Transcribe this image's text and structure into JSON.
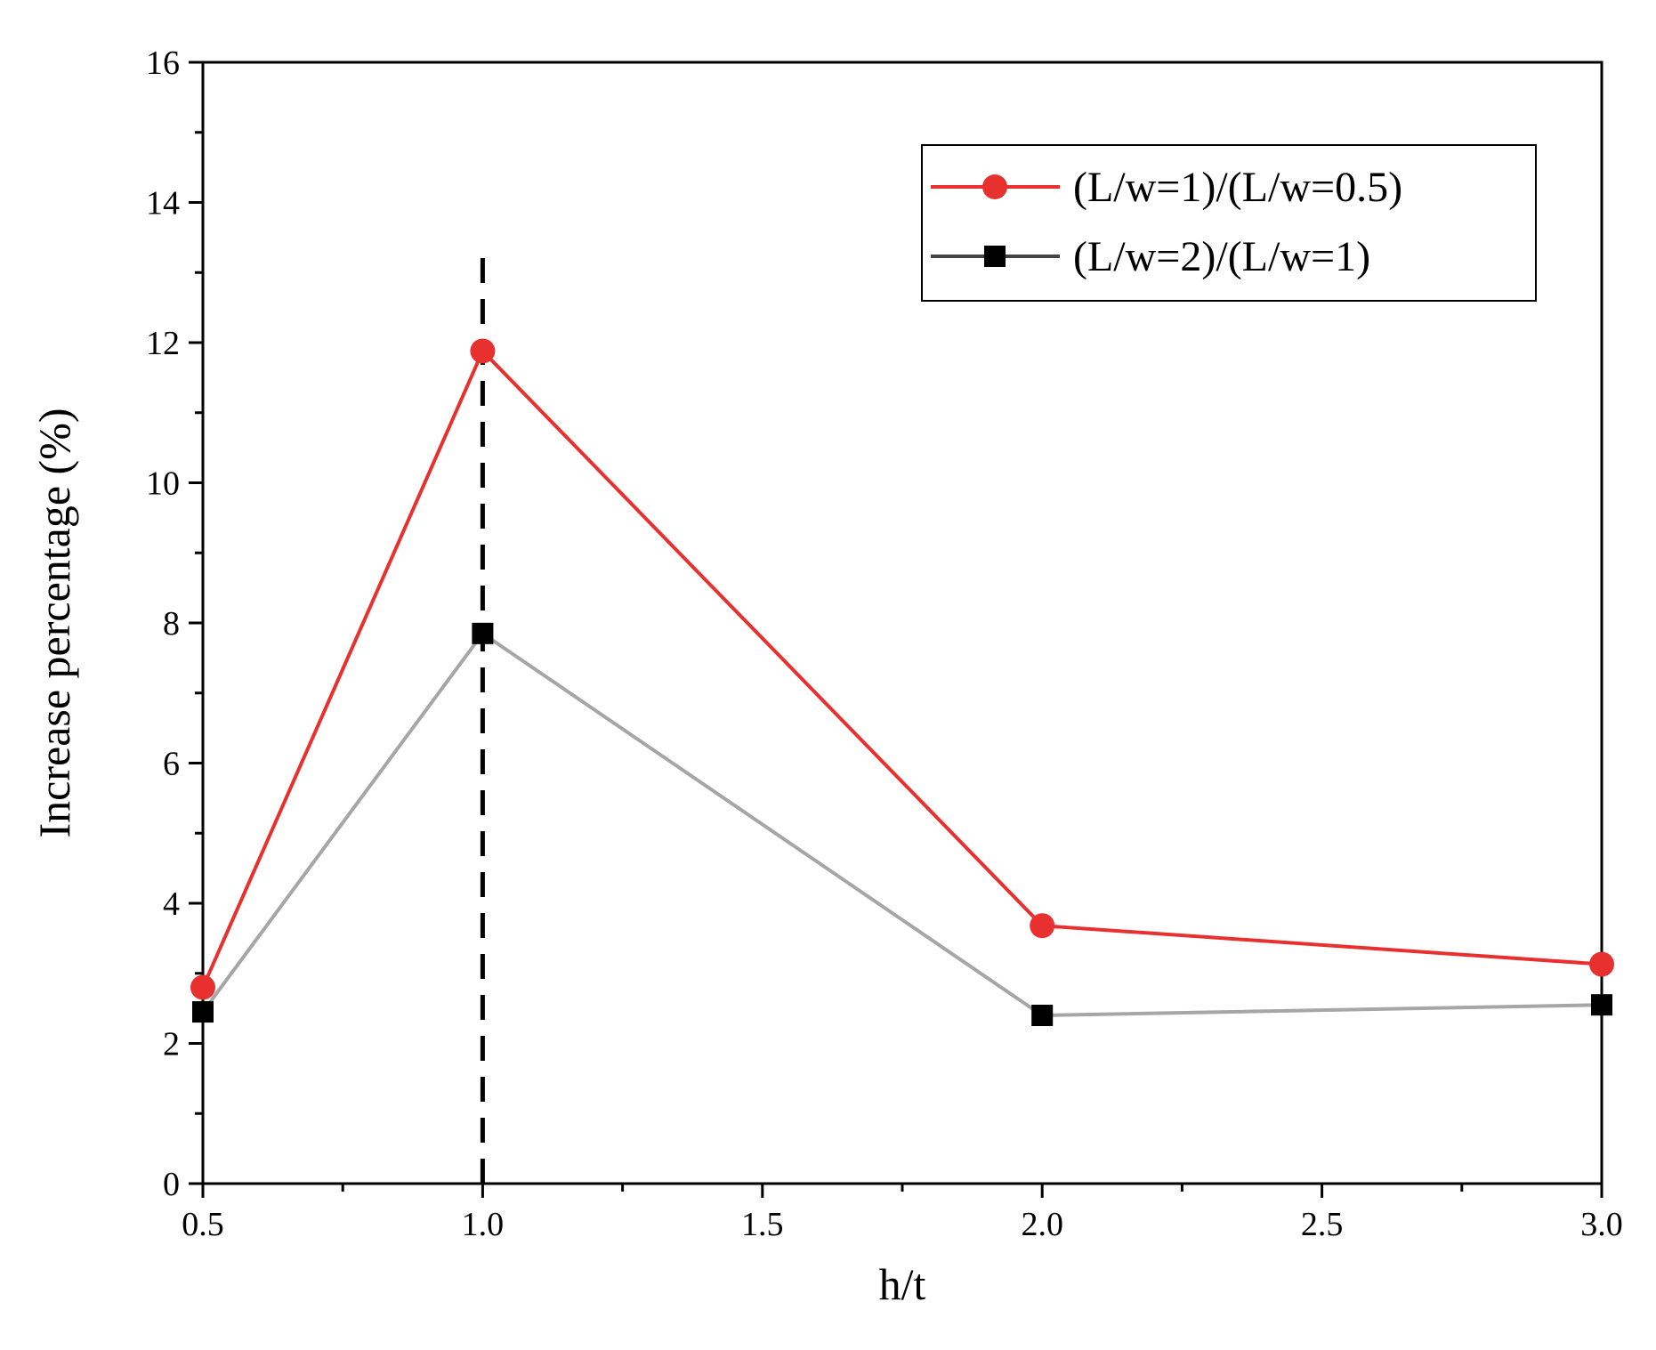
{
  "chart_data": {
    "type": "line",
    "title": "",
    "xlabel": "h/t",
    "ylabel": "Increase percentage (%)",
    "xlim": [
      0.5,
      3.0
    ],
    "ylim": [
      0,
      16
    ],
    "x_ticks": [
      "0.5",
      "1.0",
      "1.5",
      "2.0",
      "2.5",
      "3.0"
    ],
    "y_ticks": [
      "0",
      "2",
      "4",
      "6",
      "8",
      "10",
      "12",
      "14",
      "16"
    ],
    "grid": false,
    "legend_position": "top-right",
    "reference_line": {
      "x": 1.0,
      "y_range": [
        0,
        13.3
      ],
      "style": "dashed"
    },
    "series": [
      {
        "name": "(L/w=1)/(L/w=0.5)",
        "color": "#e8302e",
        "marker": "circle",
        "x": [
          0.5,
          1.0,
          2.0,
          3.0
        ],
        "y": [
          2.8,
          11.88,
          3.68,
          3.13
        ]
      },
      {
        "name": "(L/w=2)/(L/w=1)",
        "color": "#000000",
        "line_color": "#a6a6a6",
        "marker": "square",
        "x": [
          0.5,
          1.0,
          2.0,
          3.0
        ],
        "y": [
          2.45,
          7.85,
          2.4,
          2.55
        ]
      }
    ]
  }
}
